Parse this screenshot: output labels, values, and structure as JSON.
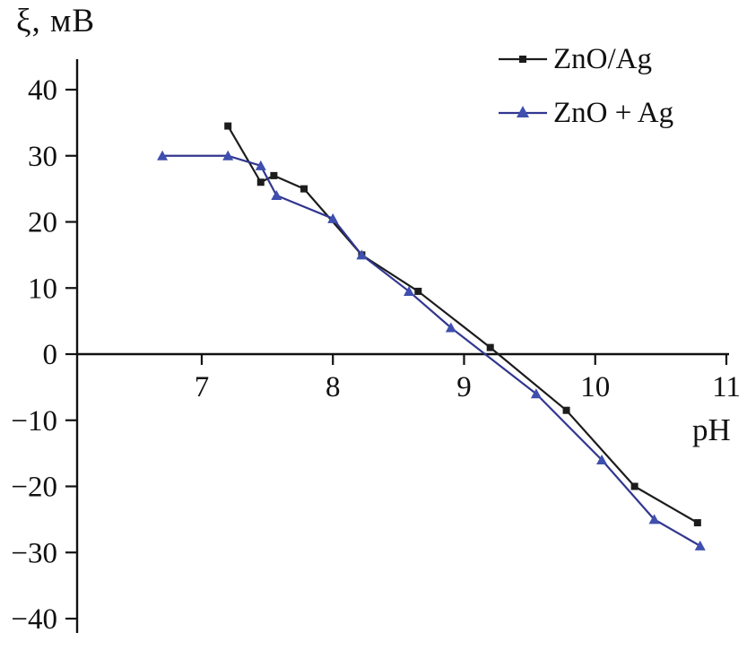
{
  "figure": {
    "background": "#ffffff",
    "axis_color": "#111111",
    "text_color": "#111111"
  },
  "chart_data": {
    "type": "line",
    "title": "",
    "ylabel": "ξ, мВ",
    "xlabel": "pH",
    "xlim": [
      6.05,
      11.0
    ],
    "ylim": [
      -40,
      40
    ],
    "xticks": [
      7,
      8,
      9,
      10,
      11
    ],
    "yticks": [
      40,
      30,
      20,
      10,
      0,
      -10,
      -20,
      -30,
      -40
    ],
    "grid": false,
    "legend_position": "top-right",
    "series": [
      {
        "name": "ZnO/Ag",
        "color": "#1c1c1c",
        "marker": "square",
        "points": [
          [
            7.2,
            34.5
          ],
          [
            7.45,
            26
          ],
          [
            7.55,
            27
          ],
          [
            7.78,
            25
          ],
          [
            8.22,
            15
          ],
          [
            8.65,
            9.5
          ],
          [
            9.2,
            1
          ],
          [
            9.78,
            -8.5
          ],
          [
            10.3,
            -20
          ],
          [
            10.78,
            -25.5
          ]
        ]
      },
      {
        "name": "ZnO + Ag",
        "color": "#32378f",
        "marker_color": "#3e4fae",
        "marker": "triangle",
        "points": [
          [
            6.7,
            30
          ],
          [
            7.2,
            30
          ],
          [
            7.45,
            28.5
          ],
          [
            7.57,
            24
          ],
          [
            8.0,
            20.5
          ],
          [
            8.22,
            15
          ],
          [
            8.58,
            9.5
          ],
          [
            8.9,
            4
          ],
          [
            9.55,
            -6
          ],
          [
            10.05,
            -16
          ],
          [
            10.45,
            -25
          ],
          [
            10.8,
            -29
          ]
        ]
      }
    ]
  }
}
